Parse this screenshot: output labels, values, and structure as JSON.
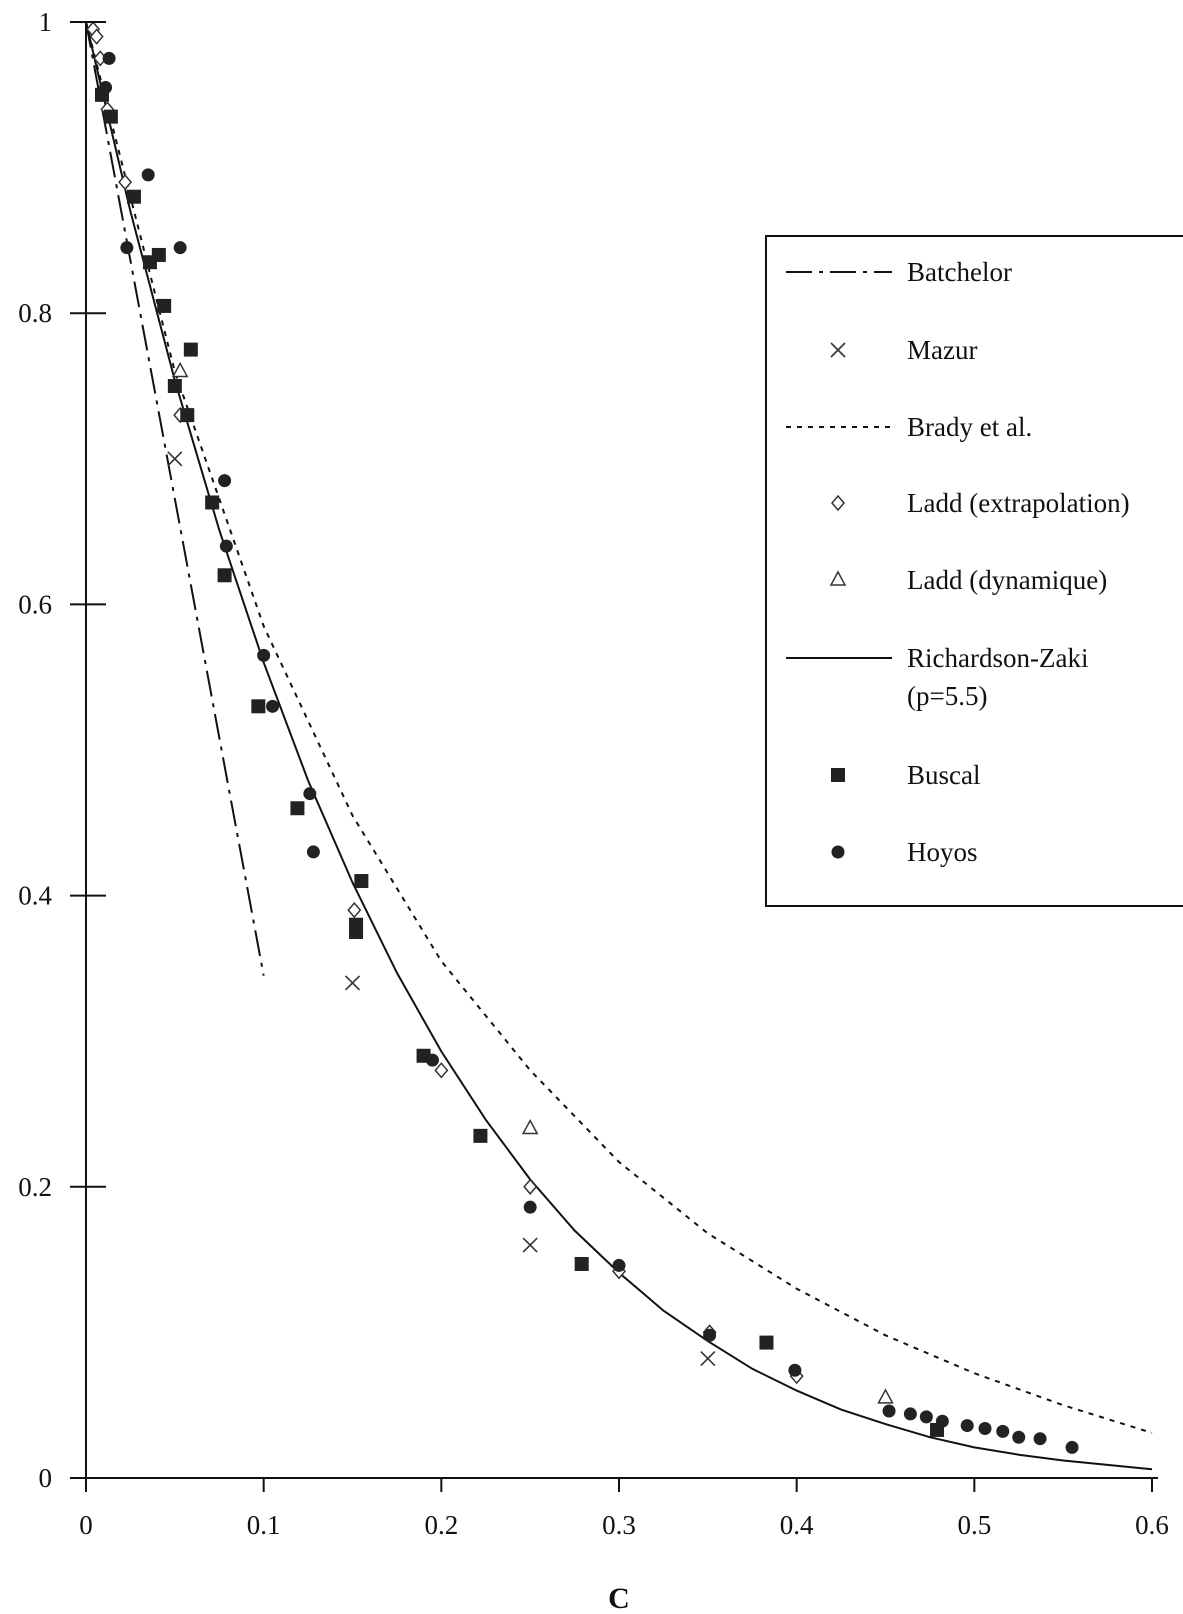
{
  "chart_data": {
    "type": "scatter",
    "xlabel": "C",
    "ylabel": "",
    "xlim": [
      0,
      0.6
    ],
    "ylim": [
      0,
      1
    ],
    "xticks": [
      "0",
      "0.1",
      "0.2",
      "0.3",
      "0.4",
      "0.5",
      "0.6"
    ],
    "yticks": [
      "0",
      "0.2",
      "0.4",
      "0.6",
      "0.8",
      "1"
    ],
    "grid": false,
    "legend_position": "right",
    "series": [
      {
        "name": "Batchelor",
        "kind": "line",
        "style": "dash-dot",
        "x": [
          0,
          0.02,
          0.04,
          0.06,
          0.08,
          0.1
        ],
        "y": [
          1,
          0.869,
          0.738,
          0.607,
          0.476,
          0.345
        ]
      },
      {
        "name": "Mazur",
        "kind": "marker",
        "marker": "cross",
        "x": [
          0.05,
          0.15,
          0.25,
          0.35
        ],
        "y": [
          0.7,
          0.34,
          0.16,
          0.082
        ]
      },
      {
        "name": "Brady et al.",
        "kind": "line",
        "style": "dotted",
        "x": [
          0,
          0.05,
          0.1,
          0.15,
          0.2,
          0.25,
          0.3,
          0.35,
          0.4,
          0.45,
          0.5,
          0.55,
          0.6
        ],
        "y": [
          1,
          0.76,
          0.585,
          0.455,
          0.355,
          0.28,
          0.217,
          0.168,
          0.13,
          0.098,
          0.072,
          0.05,
          0.031
        ]
      },
      {
        "name": "Ladd (extrapolation)",
        "kind": "marker",
        "marker": "diamond",
        "x": [
          0.004,
          0.006,
          0.008,
          0.012,
          0.022,
          0.053,
          0.151,
          0.2,
          0.25,
          0.3,
          0.351,
          0.4
        ],
        "y": [
          0.995,
          0.99,
          0.975,
          0.94,
          0.89,
          0.73,
          0.39,
          0.28,
          0.2,
          0.142,
          0.1,
          0.07
        ]
      },
      {
        "name": "Ladd (dynamique)",
        "kind": "marker",
        "marker": "triangle",
        "x": [
          0.053,
          0.25,
          0.45
        ],
        "y": [
          0.76,
          0.24,
          0.055
        ]
      },
      {
        "name": "Richardson-Zaki\n(p=5.5)",
        "kind": "line",
        "style": "solid",
        "x": [
          0,
          0.025,
          0.05,
          0.075,
          0.1,
          0.125,
          0.15,
          0.175,
          0.2,
          0.225,
          0.25,
          0.275,
          0.3,
          0.325,
          0.35,
          0.375,
          0.4,
          0.425,
          0.45,
          0.475,
          0.5,
          0.525,
          0.55,
          0.575,
          0.6
        ],
        "y": [
          1,
          0.87,
          0.754,
          0.651,
          0.56,
          0.479,
          0.409,
          0.347,
          0.293,
          0.246,
          0.205,
          0.17,
          0.141,
          0.115,
          0.094,
          0.075,
          0.06,
          0.047,
          0.037,
          0.028,
          0.021,
          0.016,
          0.012,
          0.009,
          0.006
        ]
      },
      {
        "name": "Buscal",
        "kind": "marker",
        "marker": "square",
        "x": [
          0.009,
          0.014,
          0.027,
          0.036,
          0.041,
          0.044,
          0.05,
          0.057,
          0.059,
          0.071,
          0.078,
          0.097,
          0.119,
          0.152,
          0.155,
          0.152,
          0.19,
          0.222,
          0.279,
          0.383,
          0.479
        ],
        "y": [
          0.95,
          0.935,
          0.88,
          0.835,
          0.84,
          0.805,
          0.75,
          0.73,
          0.775,
          0.67,
          0.62,
          0.53,
          0.46,
          0.38,
          0.41,
          0.375,
          0.29,
          0.235,
          0.147,
          0.093,
          0.033
        ]
      },
      {
        "name": "Hoyos",
        "kind": "marker",
        "marker": "circle",
        "x": [
          0.011,
          0.013,
          0.023,
          0.035,
          0.053,
          0.078,
          0.079,
          0.1,
          0.105,
          0.126,
          0.128,
          0.152,
          0.195,
          0.25,
          0.3,
          0.351,
          0.399,
          0.452,
          0.464,
          0.473,
          0.482,
          0.496,
          0.506,
          0.516,
          0.525,
          0.537,
          0.555
        ],
        "y": [
          0.955,
          0.975,
          0.845,
          0.895,
          0.845,
          0.685,
          0.64,
          0.565,
          0.53,
          0.47,
          0.43,
          0.38,
          0.287,
          0.186,
          0.146,
          0.098,
          0.074,
          0.046,
          0.044,
          0.042,
          0.039,
          0.036,
          0.034,
          0.032,
          0.028,
          0.027,
          0.021
        ]
      }
    ]
  }
}
